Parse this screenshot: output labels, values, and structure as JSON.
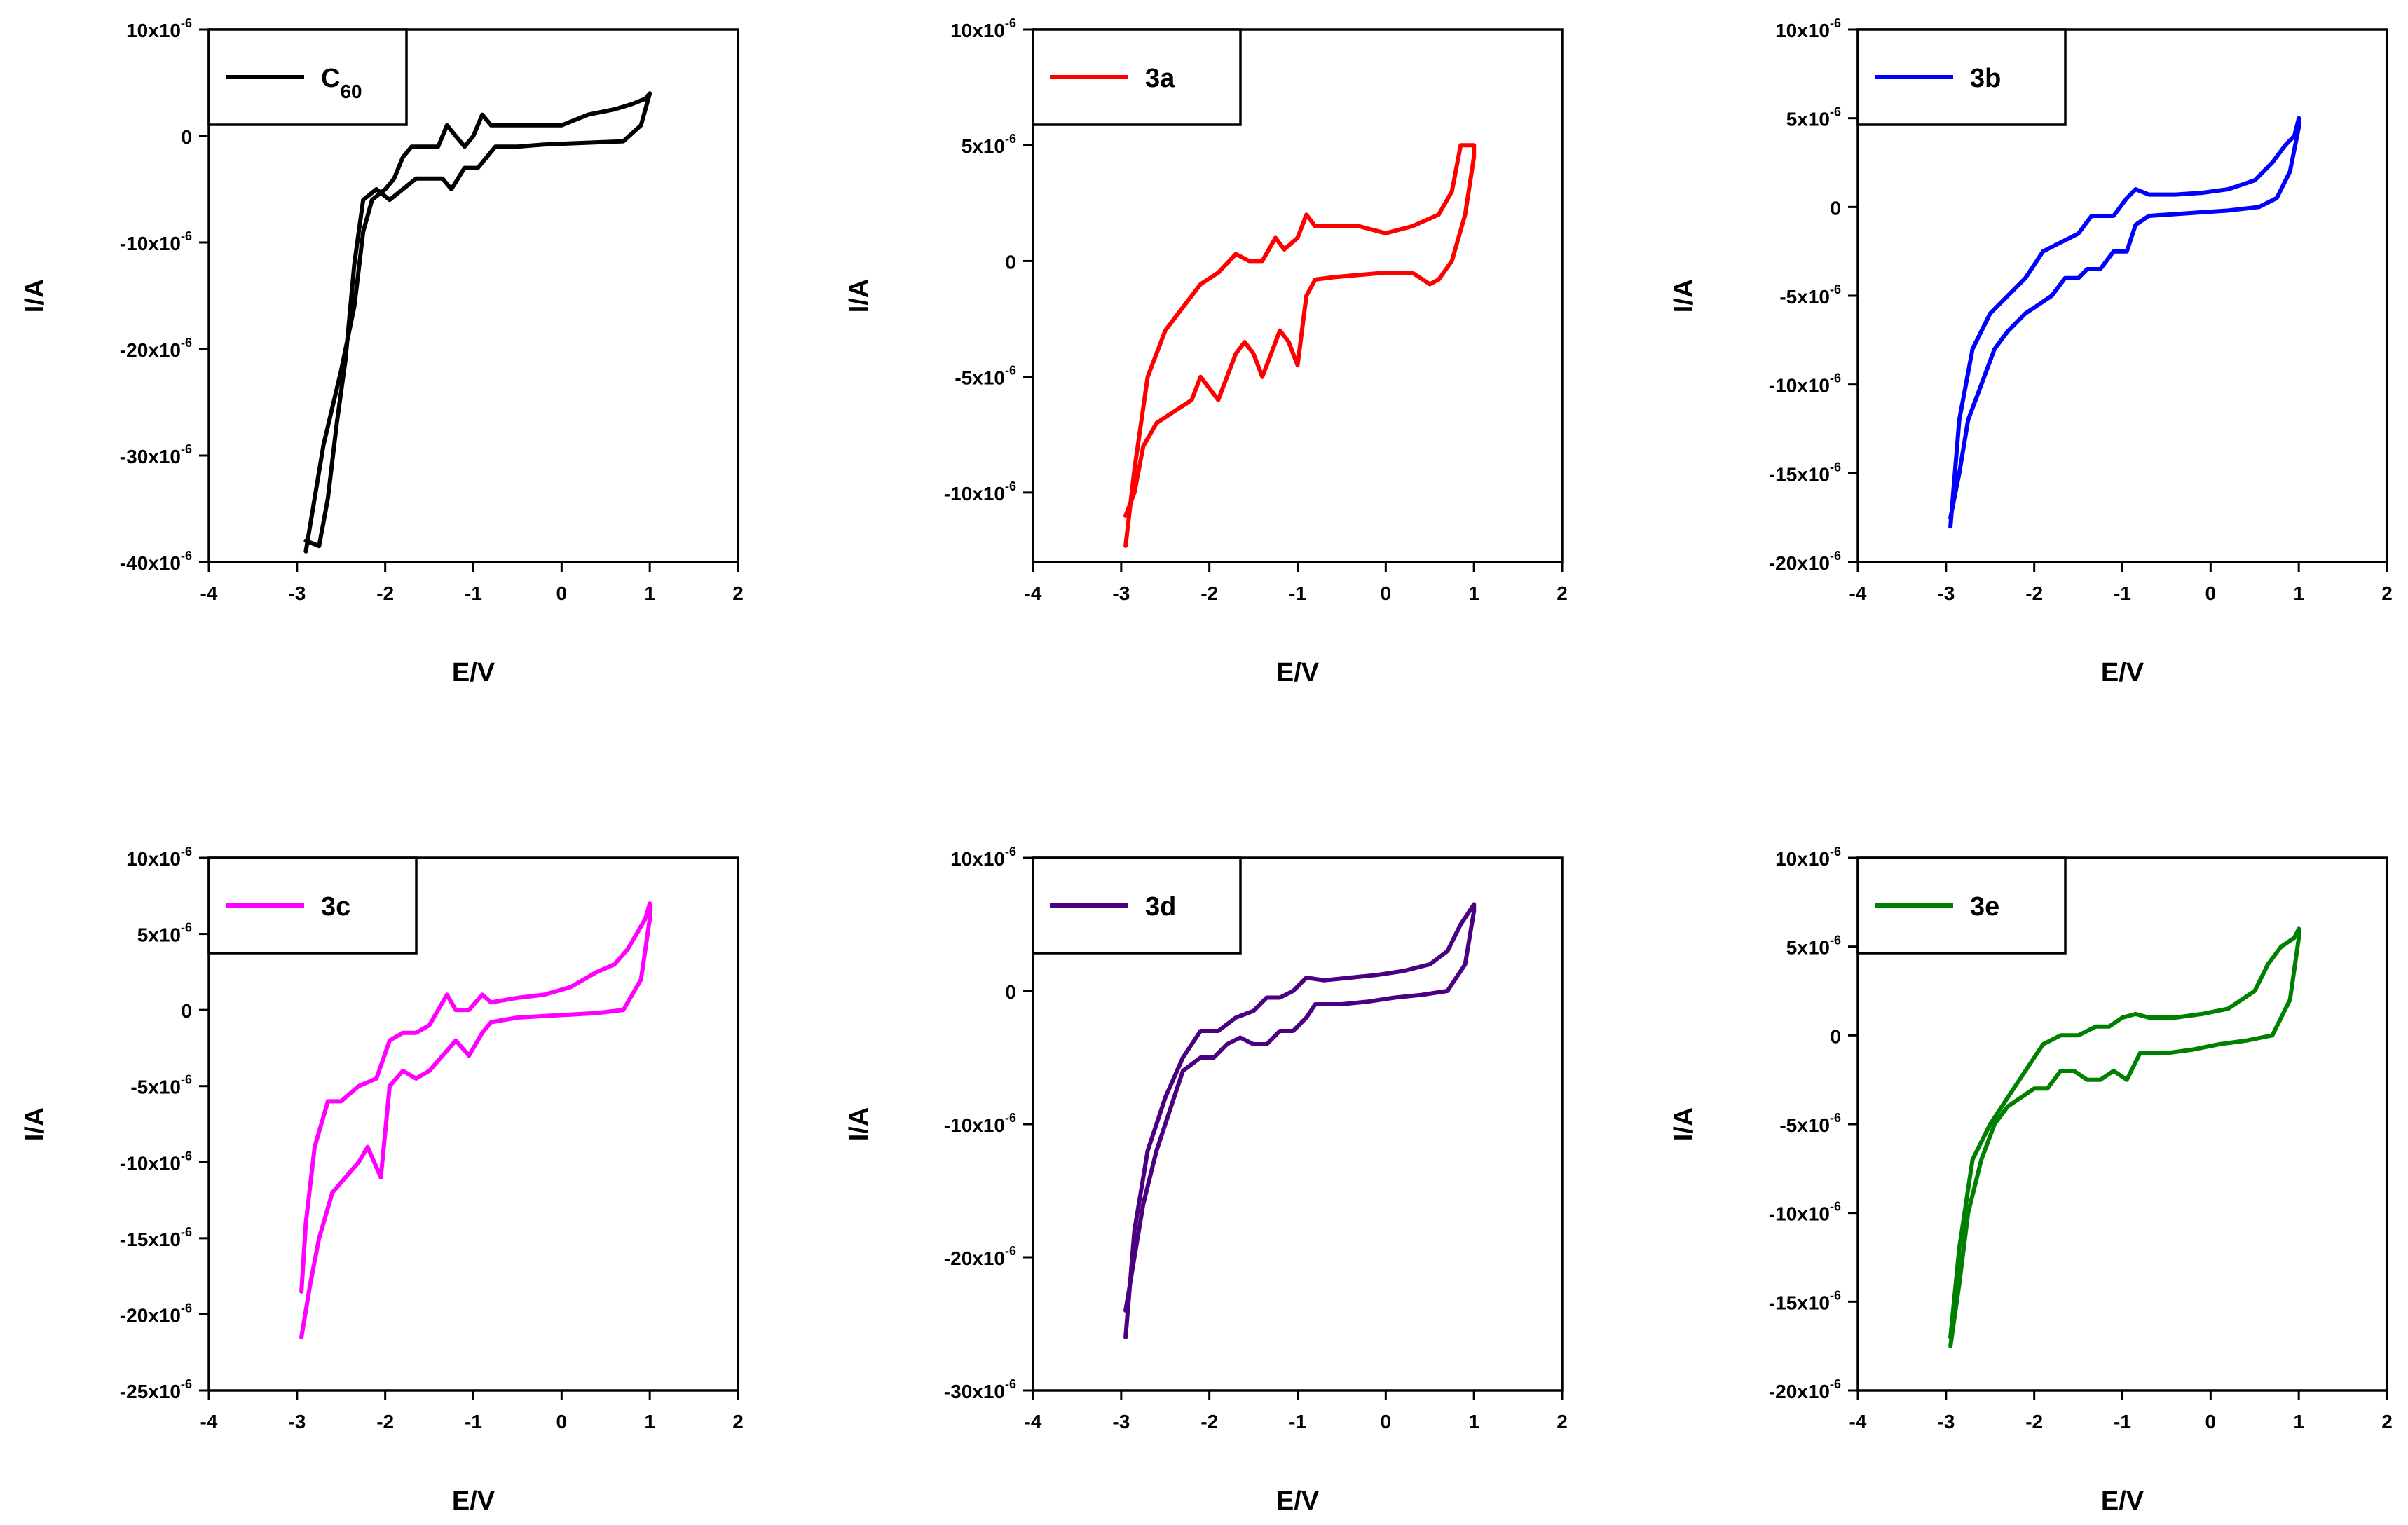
{
  "chart_data": [
    {
      "type": "line",
      "legend": "C60",
      "legend_main": "C",
      "legend_sub": "60",
      "color": "#000000",
      "xlabel": "E/V",
      "ylabel": "I/A",
      "xlim": [
        -4,
        2
      ],
      "ylim": [
        -40,
        10
      ],
      "x_ticks": [
        "-4",
        "-3",
        "-2",
        "-1",
        "0",
        "1",
        "2"
      ],
      "y_ticks": [
        {
          "value": 10,
          "base": "10x10",
          "exp": "-6"
        },
        {
          "value": 0,
          "base": "0",
          "exp": ""
        },
        {
          "value": -10,
          "base": "-10x10",
          "exp": "-6"
        },
        {
          "value": -20,
          "base": "-20x10",
          "exp": "-6"
        },
        {
          "value": -30,
          "base": "-30x10",
          "exp": "-6"
        },
        {
          "value": -40,
          "base": "-40x10",
          "exp": "-6"
        }
      ],
      "y_unit_note": "current in units of 10^-6 A",
      "series": [
        {
          "name": "C60",
          "x": [
            -2.9,
            -2.7,
            -2.5,
            -2.35,
            -2.25,
            -2.15,
            -2.0,
            -1.9,
            -1.8,
            -1.7,
            -1.55,
            -1.4,
            -1.3,
            -1.2,
            -1.1,
            -1.0,
            -0.9,
            -0.8,
            -0.7,
            -0.5,
            -0.2,
            0.0,
            0.3,
            0.6,
            0.8,
            0.95,
            1.0,
            1.0,
            0.9,
            0.7,
            0.4,
            0.1,
            -0.2,
            -0.5,
            -0.75,
            -0.85,
            -0.95,
            -1.1,
            -1.25,
            -1.35,
            -1.5,
            -1.65,
            -1.8,
            -1.95,
            -2.1,
            -2.25,
            -2.35,
            -2.45,
            -2.55,
            -2.65,
            -2.75,
            -2.9
          ],
          "y": [
            -39,
            -29,
            -22,
            -16,
            -9,
            -6,
            -5,
            -4,
            -2,
            -1,
            -1,
            -1,
            1,
            0,
            -1,
            0,
            2,
            1,
            1,
            1,
            1,
            1,
            2,
            2.5,
            3,
            3.5,
            4,
            4,
            1,
            -0.5,
            -0.6,
            -0.7,
            -0.8,
            -1,
            -1,
            -2,
            -3,
            -3,
            -5,
            -4,
            -4,
            -4,
            -5,
            -6,
            -5,
            -6,
            -12,
            -21,
            -27,
            -34,
            -38.5,
            -38
          ]
        }
      ]
    },
    {
      "type": "line",
      "legend": "3a",
      "legend_main": "3a",
      "legend_sub": "",
      "color": "#ff0000",
      "xlabel": "E/V",
      "ylabel": "I/A",
      "xlim": [
        -4,
        2
      ],
      "ylim": [
        -13,
        10
      ],
      "x_ticks": [
        "-4",
        "-3",
        "-2",
        "-1",
        "0",
        "1",
        "2"
      ],
      "y_ticks": [
        {
          "value": 10,
          "base": "10x10",
          "exp": "-6"
        },
        {
          "value": 5,
          "base": "5x10",
          "exp": "-6"
        },
        {
          "value": 0,
          "base": "0",
          "exp": ""
        },
        {
          "value": -5,
          "base": "-5x10",
          "exp": "-6"
        },
        {
          "value": -10,
          "base": "-10x10",
          "exp": "-6"
        }
      ],
      "y_unit_note": "current in units of 10^-6 A",
      "series": [
        {
          "name": "3a",
          "x": [
            -2.95,
            -2.85,
            -2.7,
            -2.5,
            -2.3,
            -2.1,
            -1.9,
            -1.7,
            -1.55,
            -1.4,
            -1.25,
            -1.15,
            -1.0,
            -0.9,
            -0.8,
            -0.6,
            -0.3,
            0.0,
            0.3,
            0.6,
            0.75,
            0.85,
            0.95,
            1.0,
            1.0,
            0.9,
            0.75,
            0.6,
            0.5,
            0.3,
            0.0,
            -0.3,
            -0.6,
            -0.8,
            -0.9,
            -1.0,
            -1.1,
            -1.2,
            -1.3,
            -1.4,
            -1.5,
            -1.6,
            -1.7,
            -1.8,
            -1.9,
            -2.0,
            -2.1,
            -2.2,
            -2.4,
            -2.6,
            -2.75,
            -2.85,
            -2.95
          ],
          "y": [
            -12.3,
            -9,
            -5,
            -3,
            -2,
            -1,
            -0.5,
            0.3,
            0,
            0,
            1,
            0.5,
            1,
            2,
            1.5,
            1.5,
            1.5,
            1.2,
            1.5,
            2,
            3,
            5,
            5,
            5,
            4.5,
            2,
            0,
            -0.8,
            -1,
            -0.5,
            -0.5,
            -0.6,
            -0.7,
            -0.8,
            -1.5,
            -4.5,
            -3.5,
            -3,
            -4,
            -5,
            -4,
            -3.5,
            -4,
            -5,
            -6,
            -5.5,
            -5,
            -6,
            -6.5,
            -7,
            -8,
            -10,
            -11
          ]
        }
      ]
    },
    {
      "type": "line",
      "legend": "3b",
      "legend_main": "3b",
      "legend_sub": "",
      "color": "#0000ff",
      "xlabel": "E/V",
      "ylabel": "I/A",
      "xlim": [
        -4,
        2
      ],
      "ylim": [
        -20,
        10
      ],
      "x_ticks": [
        "-4",
        "-3",
        "-2",
        "-1",
        "0",
        "1",
        "2"
      ],
      "y_ticks": [
        {
          "value": 10,
          "base": "10x10",
          "exp": "-6"
        },
        {
          "value": 5,
          "base": "5x10",
          "exp": "-6"
        },
        {
          "value": 0,
          "base": "0",
          "exp": ""
        },
        {
          "value": -5,
          "base": "-5x10",
          "exp": "-6"
        },
        {
          "value": -10,
          "base": "-10x10",
          "exp": "-6"
        },
        {
          "value": -15,
          "base": "-15x10",
          "exp": "-6"
        },
        {
          "value": -20,
          "base": "-20x10",
          "exp": "-6"
        }
      ],
      "y_unit_note": "current in units of 10^-6 A",
      "series": [
        {
          "name": "3b",
          "x": [
            -2.95,
            -2.85,
            -2.7,
            -2.5,
            -2.3,
            -2.1,
            -1.9,
            -1.7,
            -1.5,
            -1.35,
            -1.25,
            -1.1,
            -0.95,
            -0.85,
            -0.7,
            -0.4,
            -0.1,
            0.2,
            0.5,
            0.7,
            0.85,
            0.95,
            1.0,
            1.0,
            0.9,
            0.75,
            0.55,
            0.2,
            -0.1,
            -0.4,
            -0.7,
            -0.85,
            -0.95,
            -1.1,
            -1.25,
            -1.4,
            -1.5,
            -1.65,
            -1.8,
            -1.95,
            -2.1,
            -2.3,
            -2.45,
            -2.6,
            -2.75,
            -2.85,
            -2.95
          ],
          "y": [
            -18,
            -12,
            -8,
            -6,
            -5,
            -4,
            -2.5,
            -2,
            -1.5,
            -0.5,
            -0.5,
            -0.5,
            0.5,
            1,
            0.7,
            0.7,
            0.8,
            1,
            1.5,
            2.5,
            3.5,
            4,
            5,
            4.5,
            2,
            0.5,
            0,
            -0.2,
            -0.3,
            -0.4,
            -0.5,
            -1,
            -2.5,
            -2.5,
            -3.5,
            -3.5,
            -4,
            -4,
            -5,
            -5.5,
            -6,
            -7,
            -8,
            -10,
            -12,
            -15,
            -17.5
          ]
        }
      ]
    },
    {
      "type": "line",
      "legend": "3c",
      "legend_main": "3c",
      "legend_sub": "",
      "color": "#ff00ff",
      "xlabel": "E/V",
      "ylabel": "I/A",
      "xlim": [
        -4,
        2
      ],
      "ylim": [
        -25,
        10
      ],
      "x_ticks": [
        "-4",
        "-3",
        "-2",
        "-1",
        "0",
        "1",
        "2"
      ],
      "y_ticks": [
        {
          "value": 10,
          "base": "10x10",
          "exp": "-6"
        },
        {
          "value": 5,
          "base": "5x10",
          "exp": "-6"
        },
        {
          "value": 0,
          "base": "0",
          "exp": ""
        },
        {
          "value": -5,
          "base": "-5x10",
          "exp": "-6"
        },
        {
          "value": -10,
          "base": "-10x10",
          "exp": "-6"
        },
        {
          "value": -15,
          "base": "-15x10",
          "exp": "-6"
        },
        {
          "value": -20,
          "base": "-20x10",
          "exp": "-6"
        },
        {
          "value": -25,
          "base": "-25x10",
          "exp": "-6"
        }
      ],
      "y_unit_note": "current in units of 10^-6 A",
      "series": [
        {
          "name": "3c",
          "x": [
            -2.95,
            -2.9,
            -2.8,
            -2.65,
            -2.5,
            -2.3,
            -2.1,
            -1.95,
            -1.8,
            -1.65,
            -1.5,
            -1.4,
            -1.3,
            -1.2,
            -1.05,
            -0.9,
            -0.8,
            -0.5,
            -0.2,
            0.1,
            0.4,
            0.6,
            0.75,
            0.85,
            0.95,
            1.0,
            1.0,
            0.9,
            0.7,
            0.4,
            0.1,
            -0.2,
            -0.5,
            -0.8,
            -0.9,
            -1.05,
            -1.2,
            -1.35,
            -1.5,
            -1.65,
            -1.8,
            -1.95,
            -2.05,
            -2.2,
            -2.3,
            -2.45,
            -2.6,
            -2.75,
            -2.85,
            -2.95
          ],
          "y": [
            -18.5,
            -14,
            -9,
            -6,
            -6,
            -5,
            -4.5,
            -2,
            -1.5,
            -1.5,
            -1,
            0,
            1,
            0,
            0,
            1,
            0.5,
            0.8,
            1,
            1.5,
            2.5,
            3,
            4,
            5,
            6,
            7,
            6,
            2,
            0,
            -0.2,
            -0.3,
            -0.4,
            -0.5,
            -0.8,
            -1.5,
            -3,
            -2,
            -3,
            -4,
            -4.5,
            -4,
            -5,
            -11,
            -9,
            -10,
            -11,
            -12,
            -15,
            -18,
            -21.5
          ]
        }
      ]
    },
    {
      "type": "line",
      "legend": "3d",
      "legend_main": "3d",
      "legend_sub": "",
      "color": "#4b0082",
      "xlabel": "E/V",
      "ylabel": "I/A",
      "xlim": [
        -4,
        2
      ],
      "ylim": [
        -30,
        10
      ],
      "x_ticks": [
        "-4",
        "-3",
        "-2",
        "-1",
        "0",
        "1",
        "2"
      ],
      "y_ticks": [
        {
          "value": 10,
          "base": "10x10",
          "exp": "-6"
        },
        {
          "value": 0,
          "base": "0",
          "exp": ""
        },
        {
          "value": -10,
          "base": "-10x10",
          "exp": "-6"
        },
        {
          "value": -20,
          "base": "-20x10",
          "exp": "-6"
        },
        {
          "value": -30,
          "base": "-30x10",
          "exp": "-6"
        }
      ],
      "y_unit_note": "current in units of 10^-6 A",
      "series": [
        {
          "name": "3d",
          "x": [
            -2.95,
            -2.85,
            -2.7,
            -2.5,
            -2.3,
            -2.1,
            -1.9,
            -1.7,
            -1.5,
            -1.35,
            -1.2,
            -1.05,
            -0.9,
            -0.7,
            -0.4,
            -0.1,
            0.2,
            0.5,
            0.7,
            0.85,
            0.95,
            1.0,
            1.0,
            0.9,
            0.7,
            0.4,
            0.1,
            -0.2,
            -0.5,
            -0.8,
            -0.9,
            -1.05,
            -1.2,
            -1.35,
            -1.5,
            -1.65,
            -1.8,
            -1.95,
            -2.1,
            -2.3,
            -2.45,
            -2.6,
            -2.75,
            -2.85,
            -2.95
          ],
          "y": [
            -26,
            -18,
            -12,
            -8,
            -5,
            -3,
            -3,
            -2,
            -1.5,
            -0.5,
            -0.5,
            0,
            1,
            0.8,
            1,
            1.2,
            1.5,
            2,
            3,
            5,
            6,
            6.5,
            6,
            2,
            0,
            -0.3,
            -0.5,
            -0.8,
            -1,
            -1,
            -2,
            -3,
            -3,
            -4,
            -4,
            -3.5,
            -4,
            -5,
            -5,
            -6,
            -9,
            -12,
            -16,
            -20,
            -24
          ]
        }
      ]
    },
    {
      "type": "line",
      "legend": "3e",
      "legend_main": "3e",
      "legend_sub": "",
      "color": "#008000",
      "xlabel": "E/V",
      "ylabel": "I/A",
      "xlim": [
        -4,
        2
      ],
      "ylim": [
        -20,
        10
      ],
      "x_ticks": [
        "-4",
        "-3",
        "-2",
        "-1",
        "0",
        "1",
        "2"
      ],
      "y_ticks": [
        {
          "value": 10,
          "base": "10x10",
          "exp": "-6"
        },
        {
          "value": 5,
          "base": "5x10",
          "exp": "-6"
        },
        {
          "value": 0,
          "base": "0",
          "exp": ""
        },
        {
          "value": -5,
          "base": "-5x10",
          "exp": "-6"
        },
        {
          "value": -10,
          "base": "-10x10",
          "exp": "-6"
        },
        {
          "value": -15,
          "base": "-15x10",
          "exp": "-6"
        },
        {
          "value": -20,
          "base": "-20x10",
          "exp": "-6"
        }
      ],
      "y_unit_note": "current in units of 10^-6 A",
      "series": [
        {
          "name": "3e",
          "x": [
            -2.95,
            -2.85,
            -2.7,
            -2.5,
            -2.3,
            -2.1,
            -1.9,
            -1.7,
            -1.5,
            -1.3,
            -1.15,
            -1.0,
            -0.85,
            -0.7,
            -0.4,
            -0.1,
            0.2,
            0.5,
            0.65,
            0.8,
            0.95,
            1.0,
            1.0,
            0.9,
            0.7,
            0.4,
            0.1,
            -0.2,
            -0.5,
            -0.8,
            -0.95,
            -1.1,
            -1.25,
            -1.4,
            -1.55,
            -1.7,
            -1.85,
            -2.0,
            -2.15,
            -2.3,
            -2.45,
            -2.6,
            -2.75,
            -2.85,
            -2.95
          ],
          "y": [
            -17,
            -12,
            -7,
            -5,
            -3.5,
            -2,
            -0.5,
            0,
            0,
            0.5,
            0.5,
            1,
            1.2,
            1,
            1,
            1.2,
            1.5,
            2.5,
            4,
            5,
            5.5,
            6,
            5.5,
            2,
            0,
            -0.3,
            -0.5,
            -0.8,
            -1,
            -1,
            -2.5,
            -2,
            -2.5,
            -2.5,
            -2,
            -2,
            -3,
            -3,
            -3.5,
            -4,
            -5,
            -7,
            -10,
            -14,
            -17.5
          ]
        }
      ]
    }
  ]
}
